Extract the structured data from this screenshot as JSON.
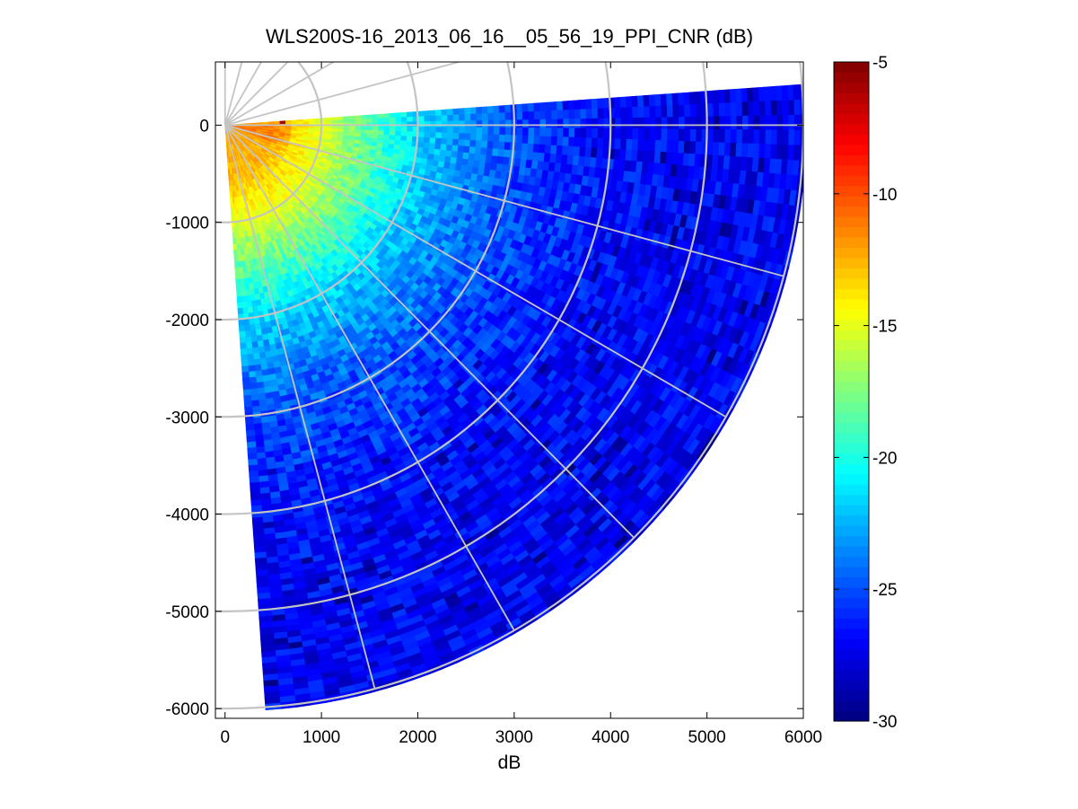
{
  "chart_data": {
    "type": "heatmap",
    "subtype": "ppi-polar-sector",
    "title": "WLS200S-16_2013_06_16__05_56_19_PPI_CNR (dB)",
    "xlabel": "dB",
    "ylabel": "",
    "xlim": [
      -100,
      6000
    ],
    "ylim": [
      -6100,
      650
    ],
    "xticks": [
      0,
      1000,
      2000,
      3000,
      4000,
      5000,
      6000
    ],
    "xtick_labels": [
      "0",
      "1000",
      "2000",
      "3000",
      "4000",
      "5000",
      "6000"
    ],
    "yticks": [
      0,
      -1000,
      -2000,
      -3000,
      -4000,
      -5000,
      -6000
    ],
    "ytick_labels": [
      "0",
      "-1000",
      "-2000",
      "-3000",
      "-4000",
      "-5000",
      "-6000"
    ],
    "sector": {
      "origin": [
        0,
        0
      ],
      "max_range": 6000,
      "azimuth_start_deg": 86,
      "azimuth_end_deg": 176
    },
    "range_rings": [
      1000,
      2000,
      3000,
      4000,
      5000,
      6000
    ],
    "radial_lines_deg": [
      0,
      15,
      30,
      45,
      60,
      75,
      90,
      105,
      120,
      135,
      150,
      165
    ],
    "cnr_profile": [
      {
        "range": 0,
        "cnr": -12
      },
      {
        "range": 500,
        "cnr": -12.5
      },
      {
        "range": 1000,
        "cnr": -15
      },
      {
        "range": 1500,
        "cnr": -18.5
      },
      {
        "range": 2000,
        "cnr": -21.5
      },
      {
        "range": 2500,
        "cnr": -23.5
      },
      {
        "range": 3000,
        "cnr": -25
      },
      {
        "range": 4000,
        "cnr": -26.5
      },
      {
        "range": 5000,
        "cnr": -27
      },
      {
        "range": 6000,
        "cnr": -27
      }
    ],
    "colorbar": {
      "colormap": "jet",
      "clim": [
        -30,
        -5
      ],
      "ticks": [
        -5,
        -10,
        -15,
        -20,
        -25,
        -30
      ],
      "tick_labels": [
        "-5",
        "-10",
        "-15",
        "-20",
        "-25",
        "-30"
      ]
    },
    "grid": false
  }
}
